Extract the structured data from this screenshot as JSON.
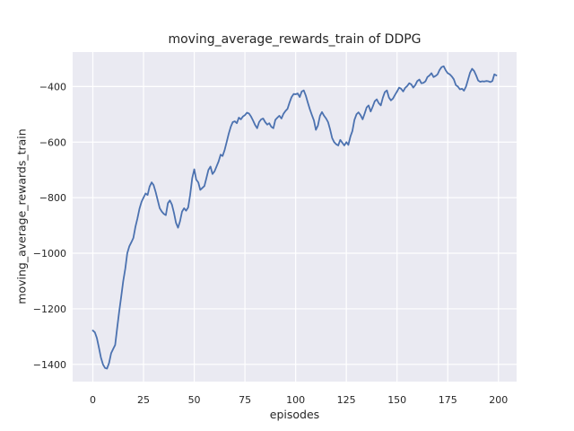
{
  "colors": {
    "figure_bg": "#ffffff",
    "axes_bg": "#eaeaf2",
    "grid": "#ffffff",
    "line": "#4c72b0",
    "text": "#262626"
  },
  "chart_data": {
    "type": "line",
    "title": "moving_average_rewards_train of DDPG",
    "xlabel": "episodes",
    "ylabel": "moving_average_rewards_train",
    "xlim": [
      -9.95,
      208.95
    ],
    "ylim": [
      -1462,
      -276
    ],
    "xticks": [
      0,
      25,
      50,
      75,
      100,
      125,
      150,
      175,
      200
    ],
    "yticks": [
      -400,
      -600,
      -800,
      -1000,
      -1200,
      -1400
    ],
    "grid": true,
    "legend_position": "none",
    "series": [
      {
        "name": "moving_average_rewards_train",
        "color": "#4c72b0",
        "x0": 0,
        "dx": 1,
        "values": [
          -1278,
          -1285,
          -1305,
          -1340,
          -1375,
          -1400,
          -1413,
          -1415,
          -1395,
          -1360,
          -1345,
          -1330,
          -1270,
          -1210,
          -1155,
          -1100,
          -1055,
          -1000,
          -975,
          -960,
          -945,
          -905,
          -875,
          -840,
          -815,
          -800,
          -785,
          -790,
          -760,
          -745,
          -755,
          -780,
          -810,
          -838,
          -850,
          -858,
          -863,
          -820,
          -810,
          -825,
          -855,
          -890,
          -908,
          -885,
          -850,
          -838,
          -847,
          -835,
          -790,
          -730,
          -698,
          -735,
          -745,
          -772,
          -765,
          -758,
          -730,
          -700,
          -688,
          -715,
          -705,
          -688,
          -670,
          -645,
          -650,
          -628,
          -600,
          -570,
          -545,
          -528,
          -525,
          -532,
          -512,
          -518,
          -508,
          -503,
          -494,
          -497,
          -508,
          -522,
          -538,
          -550,
          -528,
          -518,
          -515,
          -528,
          -537,
          -532,
          -545,
          -550,
          -520,
          -512,
          -505,
          -515,
          -498,
          -488,
          -480,
          -458,
          -438,
          -427,
          -428,
          -425,
          -438,
          -418,
          -414,
          -432,
          -458,
          -482,
          -502,
          -522,
          -556,
          -540,
          -505,
          -492,
          -505,
          -515,
          -528,
          -555,
          -585,
          -600,
          -608,
          -612,
          -592,
          -602,
          -612,
          -600,
          -610,
          -580,
          -560,
          -520,
          -500,
          -493,
          -503,
          -518,
          -498,
          -475,
          -468,
          -490,
          -472,
          -453,
          -446,
          -460,
          -468,
          -440,
          -420,
          -414,
          -440,
          -450,
          -443,
          -430,
          -418,
          -404,
          -408,
          -418,
          -405,
          -398,
          -388,
          -392,
          -404,
          -395,
          -380,
          -375,
          -388,
          -387,
          -381,
          -366,
          -360,
          -352,
          -366,
          -362,
          -356,
          -340,
          -330,
          -327,
          -342,
          -352,
          -356,
          -364,
          -374,
          -395,
          -400,
          -410,
          -408,
          -415,
          -400,
          -376,
          -350,
          -336,
          -344,
          -360,
          -378,
          -383,
          -381,
          -382,
          -380,
          -381,
          -384,
          -380,
          -356,
          -360
        ]
      }
    ]
  }
}
